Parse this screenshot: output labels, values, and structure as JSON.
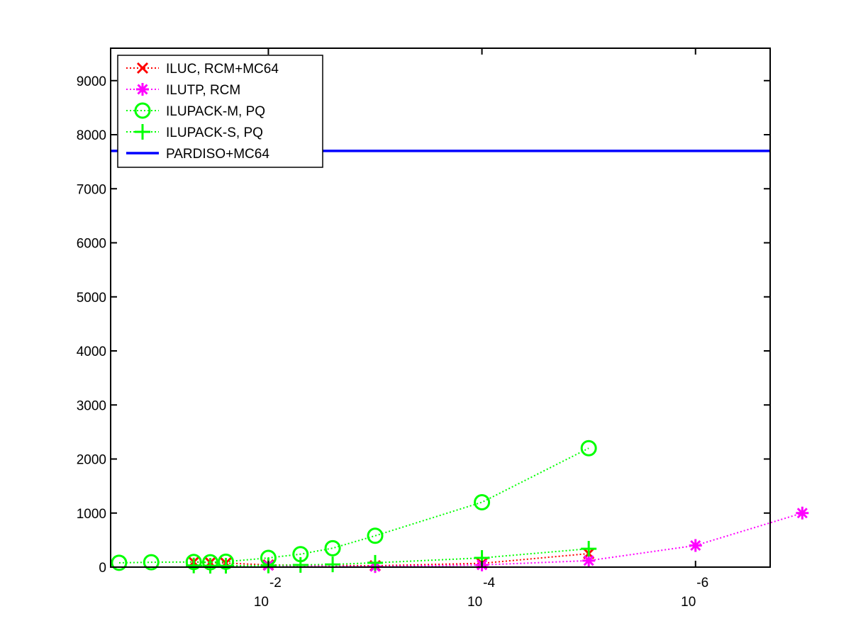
{
  "chart_data": {
    "type": "line",
    "title": "",
    "xlabel": "",
    "ylabel": "",
    "x_scale": "log",
    "x_direction": "decreasing",
    "xlim": [
      0.3,
      2e-07
    ],
    "ylim": [
      0,
      9600
    ],
    "grid": false,
    "legend_position": "top-left",
    "x_ticks": [
      {
        "value": 0.01,
        "base": "10",
        "exponent": "-2"
      },
      {
        "value": 0.0001,
        "base": "10",
        "exponent": "-4"
      },
      {
        "value": 1e-06,
        "base": "10",
        "exponent": "-6"
      }
    ],
    "y_ticks": [
      {
        "value": 0,
        "label": "0"
      },
      {
        "value": 1000,
        "label": "1000"
      },
      {
        "value": 2000,
        "label": "2000"
      },
      {
        "value": 3000,
        "label": "3000"
      },
      {
        "value": 4000,
        "label": "4000"
      },
      {
        "value": 5000,
        "label": "5000"
      },
      {
        "value": 6000,
        "label": "6000"
      },
      {
        "value": 7000,
        "label": "7000"
      },
      {
        "value": 8000,
        "label": "8000"
      },
      {
        "value": 9000,
        "label": "9000"
      }
    ],
    "series": [
      {
        "name": "ILUC, RCM+MC64",
        "color": "#ff0000",
        "marker": "x",
        "line": "dotted",
        "points": [
          {
            "x": 0.05,
            "y": 95
          },
          {
            "x": 0.035,
            "y": 85
          },
          {
            "x": 0.025,
            "y": 75
          },
          {
            "x": 0.01,
            "y": 40
          },
          {
            "x": 0.001,
            "y": 25
          },
          {
            "x": 0.0001,
            "y": 70
          },
          {
            "x": 1e-05,
            "y": 250
          }
        ]
      },
      {
        "name": "ILUTP, RCM",
        "color": "#ff00ff",
        "marker": "star",
        "line": "dotted",
        "points": [
          {
            "x": 0.01,
            "y": 30
          },
          {
            "x": 0.001,
            "y": 10
          },
          {
            "x": 0.0001,
            "y": 40
          },
          {
            "x": 1e-05,
            "y": 120
          },
          {
            "x": 1e-06,
            "y": 400
          },
          {
            "x": 1e-07,
            "y": 1000
          }
        ]
      },
      {
        "name": "ILUPACK-M, PQ",
        "color": "#00ff00",
        "marker": "circle",
        "line": "dotted",
        "points": [
          {
            "x": 0.25,
            "y": 80
          },
          {
            "x": 0.125,
            "y": 90
          },
          {
            "x": 0.05,
            "y": 95
          },
          {
            "x": 0.035,
            "y": 90
          },
          {
            "x": 0.025,
            "y": 100
          },
          {
            "x": 0.01,
            "y": 170
          },
          {
            "x": 0.005,
            "y": 240
          },
          {
            "x": 0.0025,
            "y": 350
          },
          {
            "x": 0.001,
            "y": 580
          },
          {
            "x": 0.0001,
            "y": 1200
          },
          {
            "x": 1e-05,
            "y": 2200
          }
        ]
      },
      {
        "name": "ILUPACK-S, PQ",
        "color": "#00ff00",
        "marker": "plus",
        "line": "dotted",
        "points": [
          {
            "x": 0.05,
            "y": 30
          },
          {
            "x": 0.035,
            "y": 25
          },
          {
            "x": 0.025,
            "y": 25
          },
          {
            "x": 0.01,
            "y": 30
          },
          {
            "x": 0.005,
            "y": 40
          },
          {
            "x": 0.0025,
            "y": 50
          },
          {
            "x": 0.001,
            "y": 80
          },
          {
            "x": 0.0001,
            "y": 170
          },
          {
            "x": 1e-05,
            "y": 340
          }
        ]
      },
      {
        "name": "PARDISO+MC64",
        "color": "#0000ff",
        "marker": "none",
        "line": "solid",
        "points": [
          {
            "x": 0.3,
            "y": 7700
          },
          {
            "x": 2e-07,
            "y": 7700
          }
        ]
      }
    ]
  }
}
